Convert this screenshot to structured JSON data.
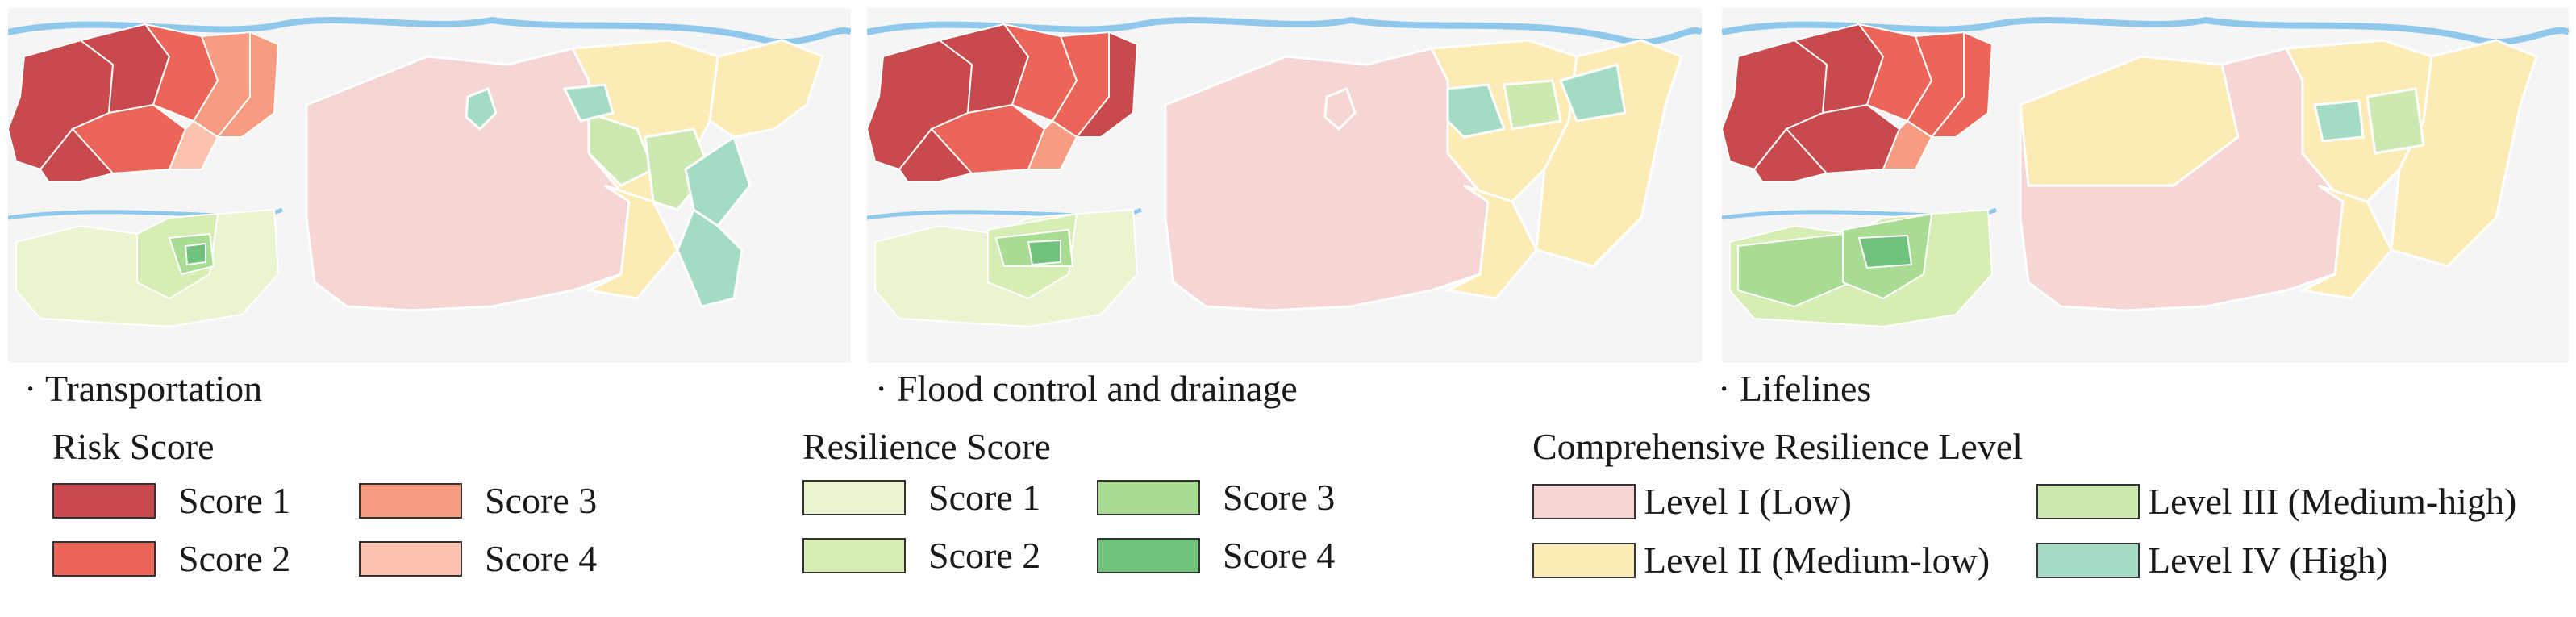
{
  "colors": {
    "risk": [
      "#c94a4c",
      "#ec6559",
      "#f79c81",
      "#fbc3ae"
    ],
    "resilience": [
      "#eaf4d1",
      "#d6eeb3",
      "#a9dc93",
      "#71c27d"
    ],
    "level": [
      "#f5d6d4",
      "#fcebb4",
      "#cce9b1",
      "#a3dcc3"
    ],
    "river": "#8fc8ea",
    "background_map": "#f1f1f1"
  },
  "panels": [
    {
      "caption": "· Transportation"
    },
    {
      "caption": "· Flood control and drainage"
    },
    {
      "caption": "· Lifelines"
    }
  ],
  "legends": {
    "risk": {
      "title": "Risk Score",
      "items": [
        "Score 1",
        "Score 2",
        "Score 3",
        "Score 4"
      ]
    },
    "resilience": {
      "title": "Resilience Score",
      "items": [
        "Score 1",
        "Score 2",
        "Score 3",
        "Score 4"
      ]
    },
    "level": {
      "title": "Comprehensive Resilience Level",
      "items": [
        "Level I (Low)",
        "Level II (Medium-low)",
        "Level III (Medium-high)",
        "Level IV (High)"
      ]
    }
  }
}
